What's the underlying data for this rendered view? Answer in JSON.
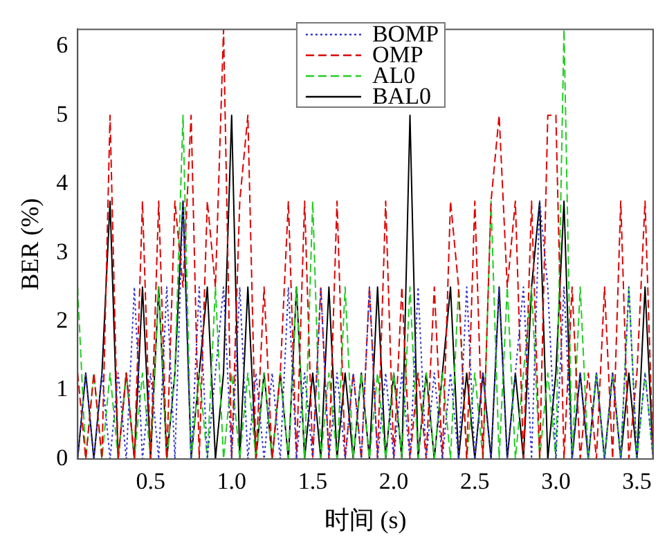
{
  "chart_data": {
    "type": "line",
    "xlabel": "时间 (s)",
    "ylabel": "BER (%)",
    "x": [
      0.05,
      0.1,
      0.15,
      0.2,
      0.25,
      0.3,
      0.35,
      0.4,
      0.45,
      0.5,
      0.55,
      0.6,
      0.65,
      0.7,
      0.75,
      0.8,
      0.85,
      0.9,
      0.95,
      1.0,
      1.05,
      1.1,
      1.15,
      1.2,
      1.25,
      1.3,
      1.35,
      1.4,
      1.45,
      1.5,
      1.55,
      1.6,
      1.65,
      1.7,
      1.75,
      1.8,
      1.85,
      1.9,
      1.95,
      2.0,
      2.05,
      2.1,
      2.15,
      2.2,
      2.25,
      2.3,
      2.35,
      2.4,
      2.45,
      2.5,
      2.55,
      2.6,
      2.65,
      2.7,
      2.75,
      2.8,
      2.85,
      2.9,
      2.95,
      3.0,
      3.05,
      3.1,
      3.15,
      3.2,
      3.25,
      3.3,
      3.35,
      3.4,
      3.45,
      3.5,
      3.55,
      3.6
    ],
    "series": [
      {
        "name": "BOMP",
        "color": "#3333cc",
        "line_style": "dotted",
        "values": [
          0,
          1.25,
          0,
          1.25,
          0,
          1.25,
          0,
          2.5,
          0,
          1.25,
          0,
          2.5,
          0,
          3.75,
          0,
          2.5,
          0,
          1.25,
          2.5,
          0,
          2.5,
          0,
          1.25,
          0,
          1.25,
          0,
          2.5,
          0,
          1.25,
          0,
          2.5,
          0,
          1.25,
          0,
          1.25,
          0,
          2.5,
          0,
          1.25,
          0,
          1.25,
          0,
          2.5,
          0,
          1.25,
          0,
          1.25,
          0,
          2.5,
          0,
          1.25,
          0,
          2.5,
          0,
          1.25,
          2.5,
          0,
          3.75,
          2.5,
          0,
          2.5,
          0,
          1.25,
          0,
          1.25,
          0,
          1.25,
          0,
          2.5,
          0,
          1.25,
          0
        ]
      },
      {
        "name": "OMP",
        "color": "#dd0000",
        "line_style": "dashed",
        "values": [
          1.25,
          0,
          1.25,
          0,
          5,
          0,
          1.25,
          0,
          3.75,
          0,
          3.75,
          0,
          3.75,
          2.5,
          5,
          0,
          3.75,
          2.5,
          6.25,
          0,
          3.75,
          5,
          0,
          2.5,
          0,
          1.25,
          3.75,
          0,
          3.75,
          0,
          2.5,
          0,
          3.75,
          0,
          1.25,
          0,
          2.5,
          0,
          3.75,
          0,
          2.5,
          0,
          1.25,
          0,
          2.5,
          0,
          3.75,
          2.5,
          0,
          3.75,
          0,
          3.75,
          5,
          2.5,
          3.75,
          0,
          3.75,
          0,
          5,
          5,
          0,
          2.5,
          0,
          1.25,
          0,
          2.5,
          0,
          3.75,
          0,
          1.25,
          3.75,
          0
        ]
      },
      {
        "name": "AL0",
        "color": "#22cc22",
        "line_style": "dashed",
        "values": [
          2.5,
          0,
          1.25,
          0,
          1.25,
          0,
          1.25,
          0,
          1.25,
          0,
          2.5,
          0,
          1.25,
          5,
          0,
          1.25,
          0,
          2.5,
          0,
          1.25,
          0,
          1.25,
          0,
          1.25,
          0,
          1.25,
          0,
          2.5,
          0,
          3.75,
          0,
          1.25,
          0,
          2.5,
          0,
          1.25,
          0,
          1.25,
          0,
          1.25,
          0,
          2.5,
          0,
          1.25,
          0,
          1.25,
          0,
          2.5,
          0,
          1.25,
          0,
          3.75,
          0,
          2.5,
          0,
          1.25,
          2.5,
          0,
          1.25,
          0,
          6.25,
          0,
          2.5,
          0,
          1.25,
          0,
          1.25,
          0,
          2.5,
          0,
          1.25,
          0
        ]
      },
      {
        "name": "BAL0",
        "color": "#000000",
        "line_style": "solid",
        "values": [
          0,
          1.25,
          0,
          1.25,
          3.75,
          0,
          1.25,
          0,
          2.5,
          0,
          2.5,
          0,
          1.25,
          3.75,
          0,
          1.25,
          2.5,
          0,
          1.25,
          5,
          0,
          2.5,
          0,
          1.25,
          0,
          1.25,
          0,
          2.5,
          0,
          1.25,
          0,
          2.5,
          0,
          1.25,
          0,
          1.25,
          0,
          2.5,
          0,
          1.25,
          0,
          5,
          0,
          1.25,
          0,
          1.25,
          2.5,
          0,
          1.25,
          0,
          1.25,
          0,
          2.5,
          0,
          1.25,
          0,
          2.5,
          3.75,
          0,
          1.25,
          3.75,
          0,
          1.25,
          0,
          1.25,
          0,
          1.25,
          0,
          1.25,
          0,
          2.5,
          0
        ]
      }
    ],
    "xlim": [
      0.05,
      3.6
    ],
    "xticks": [
      {
        "value": 0.5,
        "label": "0.5"
      },
      {
        "value": 1,
        "label": "1.0"
      },
      {
        "value": 1.5,
        "label": "1.5"
      },
      {
        "value": 2,
        "label": "2.0"
      },
      {
        "value": 2.5,
        "label": "2.5"
      },
      {
        "value": 3,
        "label": "3.0"
      },
      {
        "value": 3.5,
        "label": "3.5"
      }
    ],
    "ylim": [
      0,
      6.25
    ],
    "yticks": [
      0,
      1,
      2,
      3,
      4,
      5,
      6
    ],
    "legend": "top",
    "marker": "none",
    "grid": false
  }
}
